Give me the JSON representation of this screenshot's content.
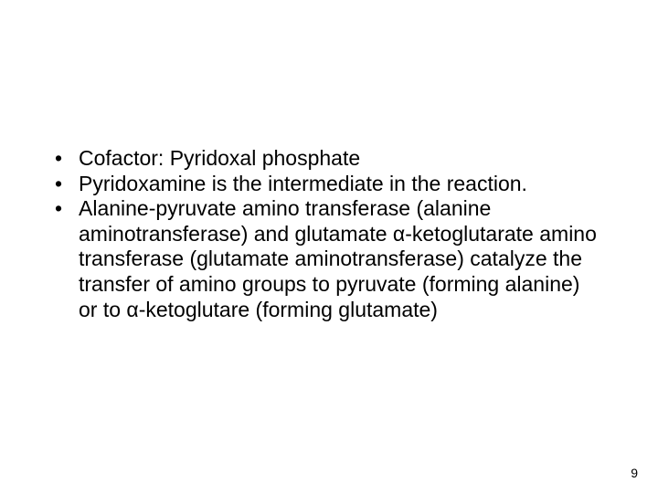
{
  "slide": {
    "bullets": [
      "Cofactor: Pyridoxal phosphate",
      "Pyridoxamine is the intermediate in the reaction.",
      "Alanine-pyruvate amino transferase (alanine aminotransferase) and glutamate α-ketoglutarate amino transferase (glutamate aminotransferase) catalyze the transfer of amino groups to pyruvate (forming alanine) or to  α-ketoglutare (forming glutamate)"
    ],
    "page_number": "9",
    "text_color": "#000000",
    "background_color": "#ffffff",
    "font_size_pt": 23,
    "font_family": "Arial"
  }
}
